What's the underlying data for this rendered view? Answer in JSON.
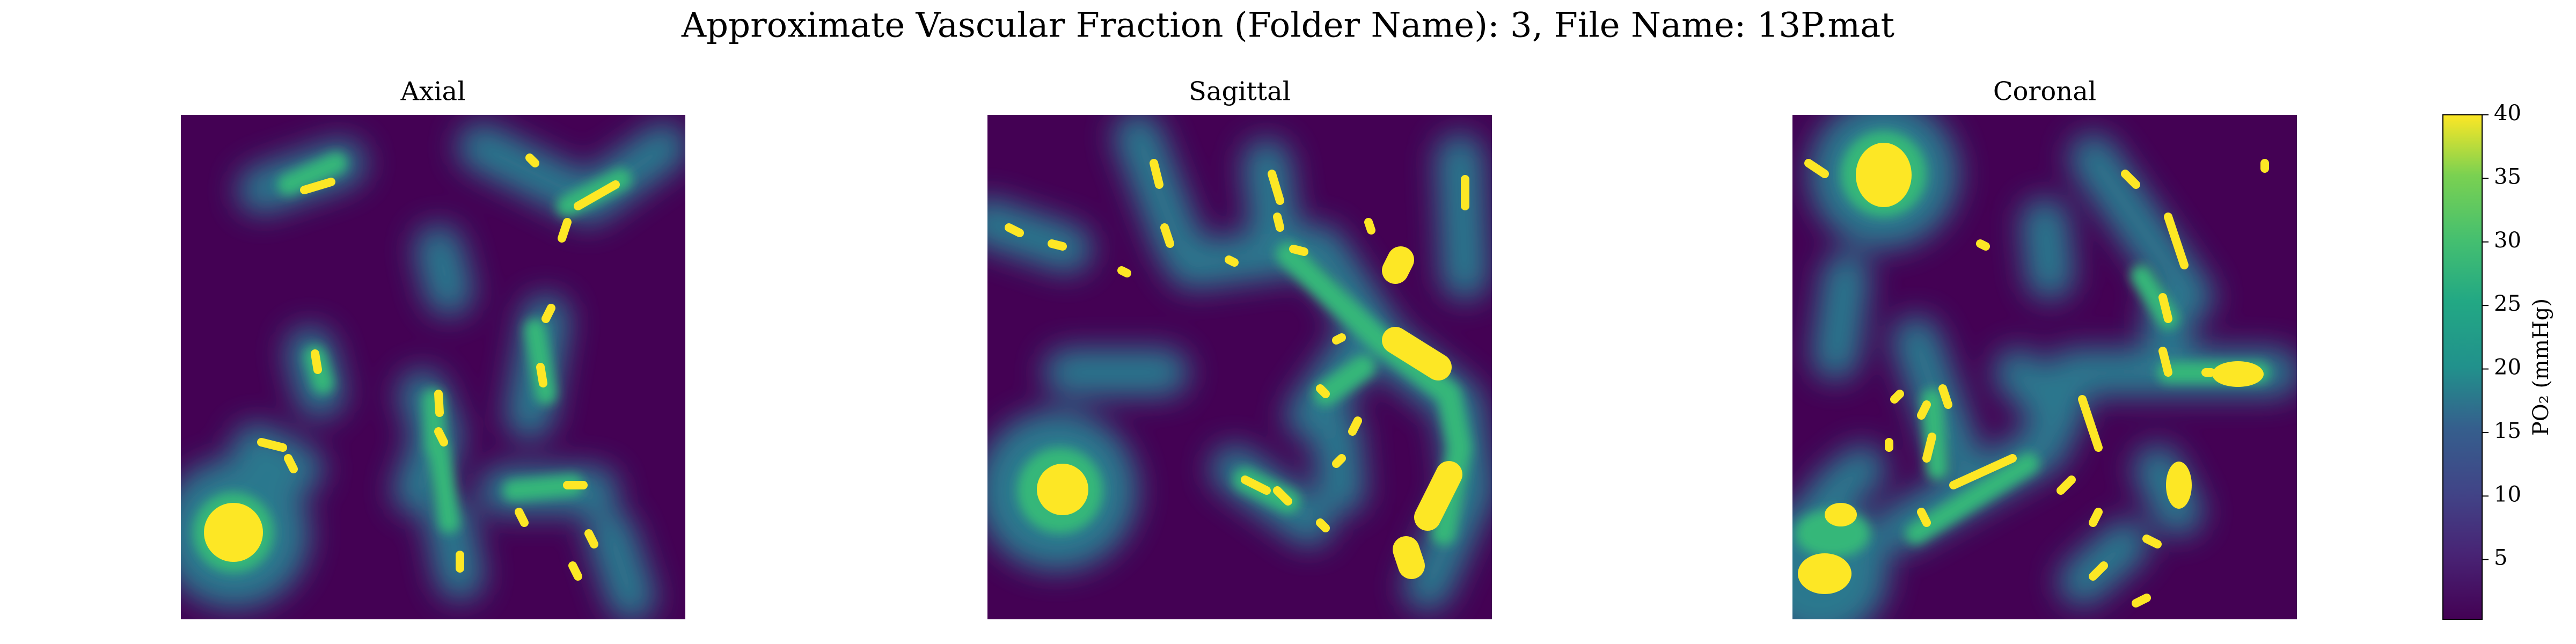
{
  "chart_data": {
    "type": "heatmap",
    "title": "Approximate Vascular Fraction (Folder Name): 3, File Name: 13P.mat",
    "panels": [
      "Axial",
      "Sagittal",
      "Coronal"
    ],
    "colorbar_label": "PO₂ (mmHg)",
    "clim": [
      0.3,
      40
    ],
    "cticks": [
      5,
      10,
      15,
      20,
      25,
      30,
      35,
      40
    ]
  }
}
